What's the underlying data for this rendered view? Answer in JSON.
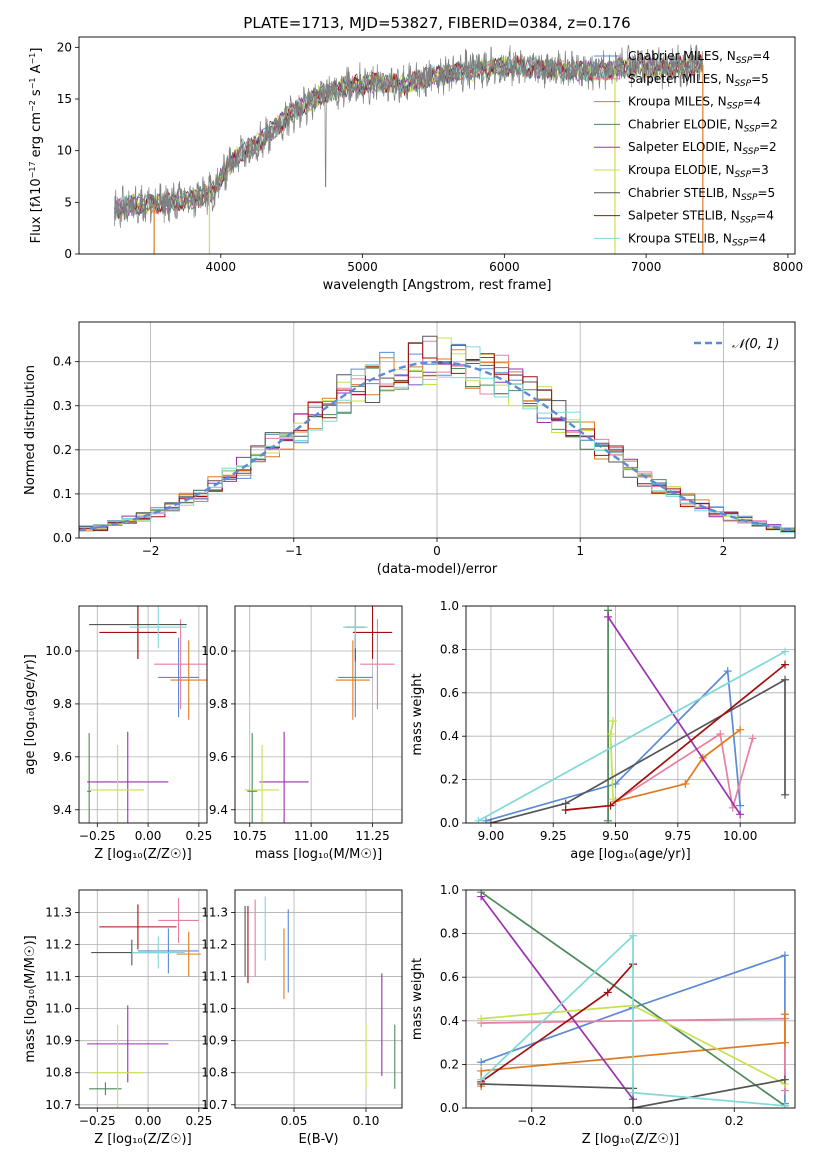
{
  "figure": {
    "title": "PLATE=1713, MJD=53827, FIBERID=0384, z=0.176"
  },
  "colors": {
    "chabrier_miles": "#5b8bd6",
    "salpeter_miles": "#e87fa0",
    "kroupa_miles": "#e07a20",
    "chabrier_elodie": "#4d8a5a",
    "salpeter_elodie": "#9a30b0",
    "kroupa_elodie": "#c8e050",
    "chabrier_stelib": "#555555",
    "salpeter_stelib": "#a01010",
    "kroupa_stelib": "#80d8d8",
    "data_spectrum": "#808080",
    "normal_curve": "#5b8bd6",
    "grid": "#b0b0b0"
  },
  "chart_data": [
    {
      "id": "spectrum",
      "type": "line",
      "xlabel": "wavelength [Angstrom, rest frame]",
      "ylabel_html": "Flux [f<tspan font-style='italic'>λ</tspan>10<tspan dy='-5' font-size='8'>−17</tspan><tspan dy='5'> erg cm</tspan><tspan dy='-5' font-size='8'>−2</tspan><tspan dy='5'> s</tspan><tspan dy='-5' font-size='8'>−1</tspan><tspan dy='5'> A</tspan><tspan dy='-5' font-size='8'>−1</tspan><tspan dy='5'>]</tspan>",
      "xlim": [
        3000,
        8050
      ],
      "ylim": [
        0,
        21
      ],
      "xticks": [
        4000,
        5000,
        6000,
        7000,
        8000
      ],
      "yticks": [
        0,
        5,
        10,
        15,
        20
      ],
      "grid": false,
      "legend_position": "top-right",
      "continuum": [
        [
          3250,
          4.3
        ],
        [
          3400,
          4.8
        ],
        [
          3600,
          4.9
        ],
        [
          3800,
          5.3
        ],
        [
          3950,
          6.0
        ],
        [
          4050,
          8.6
        ],
        [
          4150,
          9.8
        ],
        [
          4300,
          11.2
        ],
        [
          4500,
          13.6
        ],
        [
          4700,
          15.4
        ],
        [
          4900,
          16.3
        ],
        [
          5100,
          16.6
        ],
        [
          5300,
          16.4
        ],
        [
          5500,
          17.3
        ],
        [
          5700,
          17.7
        ],
        [
          5900,
          18.0
        ],
        [
          6100,
          18.2
        ],
        [
          6300,
          17.9
        ],
        [
          6500,
          17.7
        ],
        [
          6700,
          17.8
        ],
        [
          6900,
          18.1
        ],
        [
          7100,
          18.0
        ],
        [
          7300,
          18.2
        ],
        [
          7400,
          18.3
        ]
      ],
      "legend": [
        {
          "label": "Chabrier MILES, N",
          "sub": "SSP",
          "tail": "=4",
          "color": "chabrier_miles"
        },
        {
          "label": "Salpeter MILES, N",
          "sub": "SSP",
          "tail": "=5",
          "color": "salpeter_miles"
        },
        {
          "label": "Kroupa MILES, N",
          "sub": "SSP",
          "tail": "=4",
          "color": "kroupa_miles"
        },
        {
          "label": "Chabrier ELODIE, N",
          "sub": "SSP",
          "tail": "=2",
          "color": "chabrier_elodie"
        },
        {
          "label": "Salpeter ELODIE, N",
          "sub": "SSP",
          "tail": "=2",
          "color": "salpeter_elodie"
        },
        {
          "label": "Kroupa ELODIE, N",
          "sub": "SSP",
          "tail": "=3",
          "color": "kroupa_elodie"
        },
        {
          "label": "Chabrier STELIB, N",
          "sub": "SSP",
          "tail": "=5",
          "color": "chabrier_stelib"
        },
        {
          "label": "Salpeter STELIB, N",
          "sub": "SSP",
          "tail": "=4",
          "color": "salpeter_stelib"
        },
        {
          "label": "Kroupa STELIB, N",
          "sub": "SSP",
          "tail": "=4",
          "color": "kroupa_stelib"
        }
      ],
      "cutoffs": [
        {
          "x": 3530,
          "color": "kroupa_miles"
        },
        {
          "x": 3920,
          "color": "kroupa_elodie"
        },
        {
          "x": 6780,
          "color": "kroupa_elodie"
        },
        {
          "x": 7400,
          "color": "kroupa_miles"
        }
      ]
    },
    {
      "id": "residuals",
      "type": "histogram",
      "xlabel": "(data-model)/error",
      "ylabel": "Normed distribution",
      "xlim": [
        -2.5,
        2.5
      ],
      "ylim": [
        0,
        0.49
      ],
      "xticks": [
        -2,
        -1,
        0,
        1,
        2
      ],
      "yticks": [
        0.0,
        0.1,
        0.2,
        0.3,
        0.4
      ],
      "grid": true,
      "legend_label": "𝒩(0, 1)",
      "legend_position": "top-right",
      "bin_width": 0.1
    },
    {
      "id": "age_vs_Z",
      "type": "scatter",
      "xlabel": "Z [log₁₀(Z/Z☉)]",
      "ylabel": "age  [log₁₀(age/yr)]",
      "xlim": [
        -0.34,
        0.29
      ],
      "ylim": [
        9.35,
        10.17
      ],
      "xticks": [
        -0.25,
        0.0,
        0.25
      ],
      "yticks": [
        9.4,
        9.6,
        9.8,
        10.0
      ],
      "grid": true,
      "points": [
        {
          "color": "chabrier_miles",
          "x": 0.15,
          "y": 9.9,
          "xerr": 0.1,
          "yerr": 0.15
        },
        {
          "color": "salpeter_miles",
          "x": 0.16,
          "y": 9.95,
          "xerr": 0.13,
          "yerr": 0.17
        },
        {
          "color": "kroupa_miles",
          "x": 0.2,
          "y": 9.89,
          "xerr": 0.09,
          "yerr": 0.15
        },
        {
          "color": "chabrier_elodie",
          "x": -0.29,
          "y": 9.47,
          "xerr": 0.01,
          "yerr": 0.22
        },
        {
          "color": "salpeter_elodie",
          "x": -0.1,
          "y": 9.505,
          "xerr": 0.2,
          "yerr": 0.19
        },
        {
          "color": "kroupa_elodie",
          "x": -0.15,
          "y": 9.475,
          "xerr": 0.13,
          "yerr": 0.17
        },
        {
          "color": "chabrier_stelib",
          "x": -0.05,
          "y": 10.1,
          "xerr": 0.24,
          "yerr": 0.13
        },
        {
          "color": "salpeter_stelib",
          "x": -0.05,
          "y": 10.07,
          "xerr": 0.19,
          "yerr": 0.1
        },
        {
          "color": "kroupa_stelib",
          "x": 0.05,
          "y": 10.09,
          "xerr": 0.14,
          "yerr": 0.08
        }
      ]
    },
    {
      "id": "age_vs_mass",
      "type": "scatter",
      "xlabel": "mass [log₁₀(M/M☉)]",
      "xlim": [
        10.69,
        11.37
      ],
      "ylim": [
        9.35,
        10.17
      ],
      "xticks": [
        10.75,
        11.0,
        11.25
      ],
      "yticks": [
        9.4,
        9.6,
        9.8,
        10.0
      ],
      "grid": true,
      "points": [
        {
          "color": "chabrier_miles",
          "x": 11.18,
          "y": 9.9,
          "xerr": 0.07,
          "yerr": 0.15
        },
        {
          "color": "salpeter_miles",
          "x": 11.27,
          "y": 9.95,
          "xerr": 0.07,
          "yerr": 0.17
        },
        {
          "color": "kroupa_miles",
          "x": 11.17,
          "y": 9.89,
          "xerr": 0.07,
          "yerr": 0.15
        },
        {
          "color": "chabrier_elodie",
          "x": 10.76,
          "y": 9.47,
          "xerr": 0.02,
          "yerr": 0.22
        },
        {
          "color": "salpeter_elodie",
          "x": 10.89,
          "y": 9.505,
          "xerr": 0.1,
          "yerr": 0.19
        },
        {
          "color": "kroupa_elodie",
          "x": 10.8,
          "y": 9.475,
          "xerr": 0.07,
          "yerr": 0.17
        },
        {
          "color": "chabrier_stelib",
          "x": 11.18,
          "y": 10.09,
          "xerr": 0.04,
          "yerr": 0.13
        },
        {
          "color": "salpeter_stelib",
          "x": 11.25,
          "y": 10.07,
          "xerr": 0.08,
          "yerr": 0.1
        },
        {
          "color": "kroupa_stelib",
          "x": 11.18,
          "y": 10.09,
          "xerr": 0.05,
          "yerr": 0.08
        }
      ]
    },
    {
      "id": "massweight_vs_age",
      "type": "line",
      "xlabel": "age  [log₁₀(age/yr)]",
      "ylabel": "mass weight",
      "xlim": [
        8.9,
        10.22
      ],
      "ylim": [
        0,
        1
      ],
      "xticks": [
        9.0,
        9.25,
        9.5,
        9.75,
        10.0
      ],
      "yticks": [
        0.0,
        0.2,
        0.4,
        0.6,
        0.8,
        1.0
      ],
      "grid": true,
      "series": [
        {
          "color": "chabrier_miles",
          "points": [
            [
              8.98,
              0.01
            ],
            [
              9.5,
              0.18
            ],
            [
              9.95,
              0.7
            ],
            [
              10.0,
              0.08
            ]
          ]
        },
        {
          "color": "salpeter_miles",
          "points": [
            [
              9.5,
              0.1
            ],
            [
              9.92,
              0.41
            ],
            [
              9.97,
              0.07
            ],
            [
              10.05,
              0.39
            ]
          ]
        },
        {
          "color": "kroupa_miles",
          "points": [
            [
              9.5,
              0.1
            ],
            [
              9.78,
              0.18
            ],
            [
              9.85,
              0.3
            ],
            [
              10.0,
              0.43
            ]
          ]
        },
        {
          "color": "chabrier_elodie",
          "points": [
            [
              9.47,
              0.98
            ],
            [
              9.47,
              0.01
            ]
          ]
        },
        {
          "color": "salpeter_elodie",
          "points": [
            [
              9.47,
              0.95
            ],
            [
              10.0,
              0.04
            ]
          ]
        },
        {
          "color": "kroupa_elodie",
          "points": [
            [
              9.49,
              0.47
            ],
            [
              9.48,
              0.41
            ],
            [
              9.49,
              0.11
            ]
          ]
        },
        {
          "color": "chabrier_stelib",
          "points": [
            [
              9.0,
              0.0
            ],
            [
              9.3,
              0.09
            ],
            [
              10.18,
              0.66
            ],
            [
              10.18,
              0.13
            ]
          ]
        },
        {
          "color": "salpeter_stelib",
          "points": [
            [
              9.3,
              0.06
            ],
            [
              9.48,
              0.08
            ],
            [
              10.18,
              0.73
            ]
          ]
        },
        {
          "color": "kroupa_stelib",
          "points": [
            [
              8.95,
              0.01
            ],
            [
              10.18,
              0.79
            ]
          ]
        }
      ]
    },
    {
      "id": "mass_vs_Z",
      "type": "scatter",
      "xlabel": "Z [log₁₀(Z/Z☉)]",
      "ylabel": "mass [log₁₀(M/M☉)]",
      "xlim": [
        -0.34,
        0.29
      ],
      "ylim": [
        10.69,
        11.37
      ],
      "xticks": [
        -0.25,
        0.0,
        0.25
      ],
      "yticks": [
        10.7,
        10.8,
        10.9,
        11.0,
        11.1,
        11.2,
        11.3
      ],
      "grid": true,
      "points": [
        {
          "color": "chabrier_miles",
          "x": 0.1,
          "y": 11.18,
          "xerr": 0.15,
          "yerr": 0.07
        },
        {
          "color": "salpeter_miles",
          "x": 0.15,
          "y": 11.275,
          "xerr": 0.1,
          "yerr": 0.07
        },
        {
          "color": "kroupa_miles",
          "x": 0.2,
          "y": 11.17,
          "xerr": 0.06,
          "yerr": 0.07
        },
        {
          "color": "chabrier_elodie",
          "x": -0.21,
          "y": 10.75,
          "xerr": 0.08,
          "yerr": 0.02
        },
        {
          "color": "salpeter_elodie",
          "x": -0.1,
          "y": 10.89,
          "xerr": 0.2,
          "yerr": 0.12
        },
        {
          "color": "kroupa_elodie",
          "x": -0.15,
          "y": 10.8,
          "xerr": 0.13,
          "yerr": 0.15
        },
        {
          "color": "chabrier_stelib",
          "x": -0.08,
          "y": 11.175,
          "xerr": 0.2,
          "yerr": 0.04
        },
        {
          "color": "salpeter_stelib",
          "x": -0.05,
          "y": 11.255,
          "xerr": 0.19,
          "yerr": 0.07
        },
        {
          "color": "kroupa_stelib",
          "x": 0.05,
          "y": 11.175,
          "xerr": 0.13,
          "yerr": 0.05
        }
      ]
    },
    {
      "id": "mass_vs_EBV",
      "type": "scatter",
      "xlabel": "E(B-V)",
      "xlim": [
        0.009,
        0.125
      ],
      "ylim": [
        10.69,
        11.37
      ],
      "xticks": [
        0.05,
        0.1
      ],
      "yticks": [
        10.7,
        10.8,
        10.9,
        11.0,
        11.1,
        11.2,
        11.3
      ],
      "grid": true,
      "points": [
        {
          "color": "chabrier_miles",
          "x": 0.046,
          "y": 11.18,
          "xerr": 0.0,
          "yerr": 0.13
        },
        {
          "color": "salpeter_miles",
          "x": 0.023,
          "y": 11.22,
          "xerr": 0.0,
          "yerr": 0.12
        },
        {
          "color": "kroupa_miles",
          "x": 0.043,
          "y": 11.14,
          "xerr": 0.0,
          "yerr": 0.11
        },
        {
          "color": "chabrier_elodie",
          "x": 0.12,
          "y": 10.85,
          "xerr": 0.0,
          "yerr": 0.1
        },
        {
          "color": "salpeter_elodie",
          "x": 0.111,
          "y": 10.95,
          "xerr": 0.0,
          "yerr": 0.16
        },
        {
          "color": "kroupa_elodie",
          "x": 0.1,
          "y": 10.85,
          "xerr": 0.0,
          "yerr": 0.1
        },
        {
          "color": "chabrier_stelib",
          "x": 0.016,
          "y": 11.21,
          "xerr": 0.0,
          "yerr": 0.11
        },
        {
          "color": "salpeter_stelib",
          "x": 0.018,
          "y": 11.2,
          "xerr": 0.0,
          "yerr": 0.12
        },
        {
          "color": "kroupa_stelib",
          "x": 0.03,
          "y": 11.25,
          "xerr": 0.0,
          "yerr": 0.1
        }
      ]
    },
    {
      "id": "massweight_vs_Z",
      "type": "line",
      "xlabel": "Z [log₁₀(Z/Z☉)]",
      "ylabel": "mass weight",
      "xlim": [
        -0.33,
        0.32
      ],
      "ylim": [
        0,
        1
      ],
      "xticks": [
        -0.2,
        0.0,
        0.2
      ],
      "yticks": [
        0.0,
        0.2,
        0.4,
        0.6,
        0.8,
        1.0
      ],
      "grid": true,
      "series": [
        {
          "color": "chabrier_miles",
          "points": [
            [
              -0.3,
              0.21
            ],
            [
              0.0,
              0.46
            ],
            [
              0.3,
              0.7
            ],
            [
              0.3,
              0.02
            ]
          ]
        },
        {
          "color": "salpeter_miles",
          "points": [
            [
              -0.3,
              0.39
            ],
            [
              0.3,
              0.41
            ],
            [
              0.3,
              0.08
            ]
          ]
        },
        {
          "color": "kroupa_miles",
          "points": [
            [
              -0.3,
              0.1
            ],
            [
              -0.3,
              0.17
            ],
            [
              0.3,
              0.3
            ],
            [
              0.3,
              0.43
            ]
          ]
        },
        {
          "color": "chabrier_elodie",
          "points": [
            [
              -0.3,
              0.99
            ],
            [
              0.3,
              0.01
            ]
          ]
        },
        {
          "color": "salpeter_elodie",
          "points": [
            [
              -0.3,
              0.97
            ],
            [
              0.0,
              0.04
            ]
          ]
        },
        {
          "color": "kroupa_elodie",
          "points": [
            [
              -0.3,
              0.41
            ],
            [
              0.0,
              0.47
            ],
            [
              0.3,
              0.11
            ]
          ]
        },
        {
          "color": "chabrier_stelib",
          "points": [
            [
              -0.3,
              0.11
            ],
            [
              0.0,
              0.09
            ],
            [
              0.0,
              0.0
            ],
            [
              0.3,
              0.13
            ]
          ]
        },
        {
          "color": "salpeter_stelib",
          "points": [
            [
              -0.3,
              0.12
            ],
            [
              -0.05,
              0.53
            ],
            [
              0.0,
              0.66
            ]
          ]
        },
        {
          "color": "kroupa_stelib",
          "points": [
            [
              -0.3,
              0.13
            ],
            [
              0.0,
              0.79
            ],
            [
              0.0,
              0.07
            ],
            [
              0.3,
              0.01
            ]
          ]
        }
      ]
    }
  ]
}
